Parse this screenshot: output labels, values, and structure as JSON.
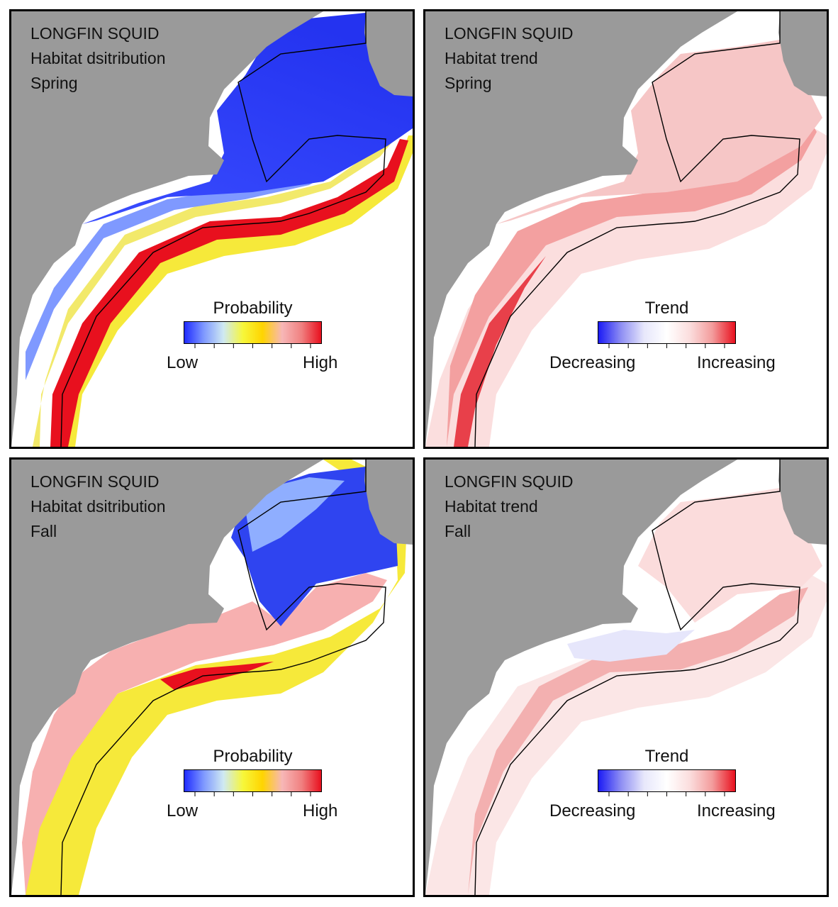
{
  "colors": {
    "land": "#9a9a9a",
    "probability_scale": [
      "#1f2bff",
      "#7f99ff",
      "#cfe9f2",
      "#f7f73a",
      "#ffd400",
      "#f7b7b7",
      "#f08080",
      "#e8101e"
    ],
    "trend_scale": [
      "#1b1bf5",
      "#8f8ff3",
      "#e7e7fb",
      "#ffffff",
      "#fbdede",
      "#f39c9c",
      "#e8101e"
    ]
  },
  "panels": [
    {
      "species": "LONGFIN SQUID",
      "metric": "Habitat dsitribution",
      "season": "Spring",
      "legend": {
        "title": "Probability",
        "low": "Low",
        "high": "High",
        "scale": "probability"
      }
    },
    {
      "species": "LONGFIN SQUID",
      "metric": "Habitat trend",
      "season": "Spring",
      "legend": {
        "title": "Trend",
        "low": "Decreasing",
        "high": "Increasing",
        "scale": "trend"
      }
    },
    {
      "species": "LONGFIN SQUID",
      "metric": "Habitat dsitribution",
      "season": "Fall",
      "legend": {
        "title": "Probability",
        "low": "Low",
        "high": "High",
        "scale": "probability"
      }
    },
    {
      "species": "LONGFIN SQUID",
      "metric": "Habitat trend",
      "season": "Fall",
      "legend": {
        "title": "Trend",
        "low": "Decreasing",
        "high": "Increasing",
        "scale": "trend"
      }
    }
  ]
}
